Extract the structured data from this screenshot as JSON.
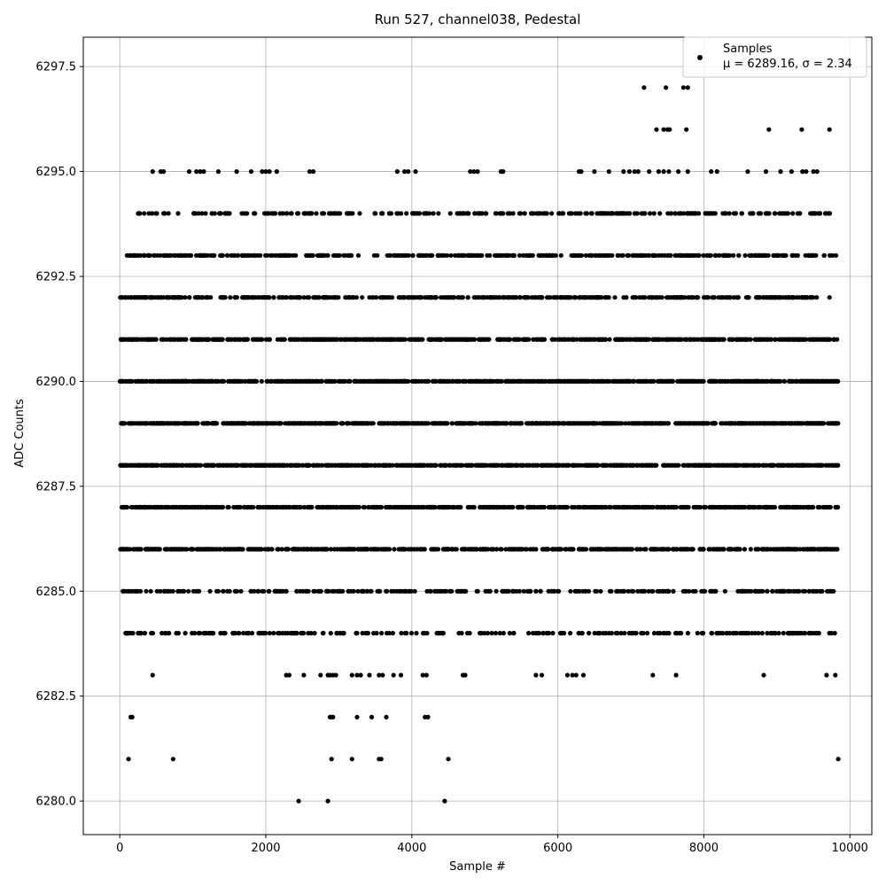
{
  "chart_data": {
    "type": "scatter",
    "title": "Run 527, channel038, Pedestal",
    "xlabel": "Sample #",
    "ylabel": "ADC Counts",
    "xlim": [
      -500,
      10300
    ],
    "ylim": [
      6279.2,
      6298.2
    ],
    "xticks": [
      0,
      2000,
      4000,
      6000,
      8000,
      10000
    ],
    "xtick_labels": [
      "0",
      "2000",
      "4000",
      "6000",
      "8000",
      "10000"
    ],
    "yticks": [
      6280.0,
      6282.5,
      6285.0,
      6287.5,
      6290.0,
      6292.5,
      6295.0,
      6297.5
    ],
    "ytick_labels": [
      "6280.0",
      "6282.5",
      "6285.0",
      "6287.5",
      "6290.0",
      "6292.5",
      "6295.0",
      "6297.5"
    ],
    "grid": true,
    "legend": {
      "placement": "top-right",
      "series_label": "Samples",
      "stats_label": "μ = 6289.16, σ = 2.34"
    },
    "marker_color": "#000000",
    "series": [
      {
        "name": "Samples",
        "points_by_level": [
          {
            "y": 6297,
            "x": [
              7180,
              7480,
              7720,
              7780
            ]
          },
          {
            "y": 6296,
            "x": [
              7350,
              7450,
              7500,
              7530,
              7760,
              8890,
              9340,
              9720
            ]
          },
          {
            "y": 6295,
            "x": [
              450,
              560,
              600,
              950,
              1050,
              1100,
              1150,
              1350,
              1600,
              1800,
              1950,
              2000,
              2050,
              2150,
              2600,
              2650,
              3800,
              3900,
              3950,
              4050,
              4800,
              4850,
              4900,
              5220,
              5250,
              6290,
              6320,
              6500,
              6700,
              6900,
              6980,
              7050,
              7100,
              7250,
              7380,
              7450,
              7520,
              7650,
              7780,
              8100,
              8180,
              8600,
              8850,
              9050,
              9200,
              9350,
              9400,
              9500,
              9550
            ]
          },
          {
            "y": 6294,
            "x_range": [
              200,
              9750
            ],
            "count": 300,
            "gaps": [
              [
                3150,
                3450
              ],
              [
                4300,
                4500
              ]
            ]
          },
          {
            "y": 6293,
            "x_range": [
              80,
              9830
            ],
            "count": 420,
            "gaps": [
              [
                3200,
                3650
              ]
            ]
          },
          {
            "y": 6292,
            "x_range": [
              0,
              9760
            ],
            "count": 480
          },
          {
            "y": 6291,
            "x_range": [
              0,
              9830
            ],
            "count": 650
          },
          {
            "y": 6290,
            "x_range": [
              0,
              9840
            ],
            "count": 800
          },
          {
            "y": 6289,
            "x_range": [
              0,
              9840
            ],
            "count": 850
          },
          {
            "y": 6288,
            "x_range": [
              0,
              9840
            ],
            "count": 850
          },
          {
            "y": 6287,
            "x_range": [
              0,
              9840
            ],
            "count": 650
          },
          {
            "y": 6286,
            "x_range": [
              0,
              9840
            ],
            "count": 560
          },
          {
            "y": 6285,
            "x_range": [
              0,
              9840
            ],
            "count": 300
          },
          {
            "y": 6284,
            "x_range": [
              0,
              9840
            ],
            "count": 260
          },
          {
            "y": 6283,
            "x": [
              450,
              2280,
              2320,
              2520,
              2750,
              2850,
              2880,
              2920,
              2960,
              3180,
              3250,
              3300,
              3420,
              3550,
              3600,
              3750,
              3850,
              4150,
              4200,
              4700,
              4730,
              5700,
              5780,
              6130,
              6200,
              6250,
              6350,
              7300,
              7620,
              8820,
              9680,
              9800
            ]
          },
          {
            "y": 6282,
            "x": [
              150,
              170,
              2880,
              2900,
              2920,
              3250,
              3450,
              3650,
              4180,
              4220
            ]
          },
          {
            "y": 6281,
            "x": [
              120,
              730,
              2900,
              3180,
              3550,
              3580,
              4500,
              9840
            ]
          },
          {
            "y": 6280,
            "x": [
              2450,
              2850,
              4450
            ]
          }
        ]
      }
    ]
  }
}
